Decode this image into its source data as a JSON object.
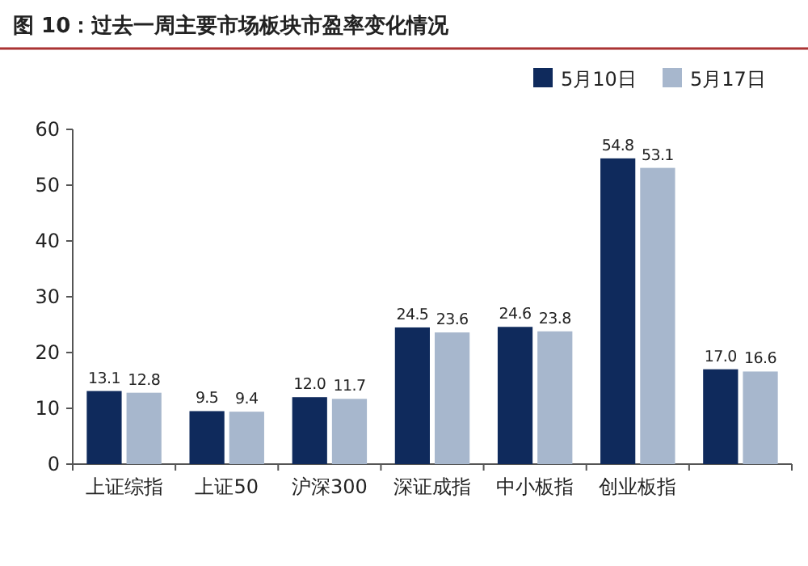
{
  "chart_data": {
    "type": "bar",
    "title": "图 10：过去一周主要市场板块市盈率变化情况",
    "categories": [
      "上证综指",
      "上证50",
      "沪深300",
      "深证成指",
      "中小板指",
      "创业板指",
      null
    ],
    "series": [
      {
        "name": "5月10日",
        "color": "#0f2a5c",
        "values": [
          13.1,
          9.5,
          12.0,
          24.5,
          24.6,
          54.8,
          17.0
        ],
        "value_labels": [
          "13.1",
          "9.5",
          "12.0",
          "24.5",
          "24.6",
          "54.8",
          "17.0"
        ]
      },
      {
        "name": "5月17日",
        "color": "#a7b7cd",
        "values": [
          12.8,
          9.4,
          11.7,
          23.6,
          23.8,
          53.1,
          16.6
        ],
        "value_labels": [
          "12.8",
          "9.4",
          "11.7",
          "23.6",
          "23.8",
          "53.1",
          "16.6"
        ]
      }
    ],
    "ylim": [
      0,
      60
    ],
    "yticks": [
      0,
      10,
      20,
      30,
      40,
      50,
      60
    ],
    "grid": false,
    "legend": "top right"
  }
}
